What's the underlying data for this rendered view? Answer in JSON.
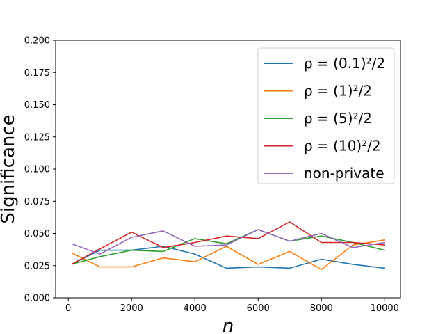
{
  "chart_data": {
    "type": "line",
    "xlabel": "n",
    "ylabel": "Significance",
    "xlim": [
      -400,
      10500
    ],
    "ylim": [
      0.0,
      0.2
    ],
    "x_ticks": [
      0,
      2000,
      4000,
      6000,
      8000,
      10000
    ],
    "x_tick_labels": [
      "0",
      "2000",
      "4000",
      "6000",
      "8000",
      "10000"
    ],
    "y_ticks": [
      0.0,
      0.025,
      0.05,
      0.075,
      0.1,
      0.125,
      0.15,
      0.175,
      0.2
    ],
    "y_tick_labels": [
      "0.000",
      "0.025",
      "0.050",
      "0.075",
      "0.100",
      "0.125",
      "0.150",
      "0.175",
      "0.200"
    ],
    "grid": false,
    "legend_position": "top-right",
    "x": [
      100,
      1000,
      2000,
      3000,
      4000,
      5000,
      6000,
      7000,
      8000,
      9000,
      10000
    ],
    "series": [
      {
        "name": "ρ = (0.1)²/2",
        "color": "#1f77b4",
        "values": [
          0.026,
          0.037,
          0.037,
          0.04,
          0.034,
          0.023,
          0.024,
          0.023,
          0.03,
          0.026,
          0.023
        ]
      },
      {
        "name": "ρ = (1)²/2",
        "color": "#ff7f0e",
        "values": [
          0.035,
          0.024,
          0.024,
          0.031,
          0.028,
          0.04,
          0.026,
          0.036,
          0.022,
          0.041,
          0.045
        ]
      },
      {
        "name": "ρ = (5)²/2",
        "color": "#2ca02c",
        "values": [
          0.026,
          0.032,
          0.037,
          0.036,
          0.046,
          0.042,
          0.053,
          0.044,
          0.048,
          0.043,
          0.037
        ]
      },
      {
        "name": "ρ = (10)²/2",
        "color": "#d62728",
        "values": [
          0.026,
          0.038,
          0.051,
          0.039,
          0.043,
          0.048,
          0.046,
          0.059,
          0.043,
          0.043,
          0.041
        ]
      },
      {
        "name": "non-private",
        "color": "#9467bd",
        "values": [
          0.042,
          0.034,
          0.047,
          0.052,
          0.04,
          0.041,
          0.053,
          0.044,
          0.05,
          0.039,
          0.043
        ]
      }
    ]
  }
}
